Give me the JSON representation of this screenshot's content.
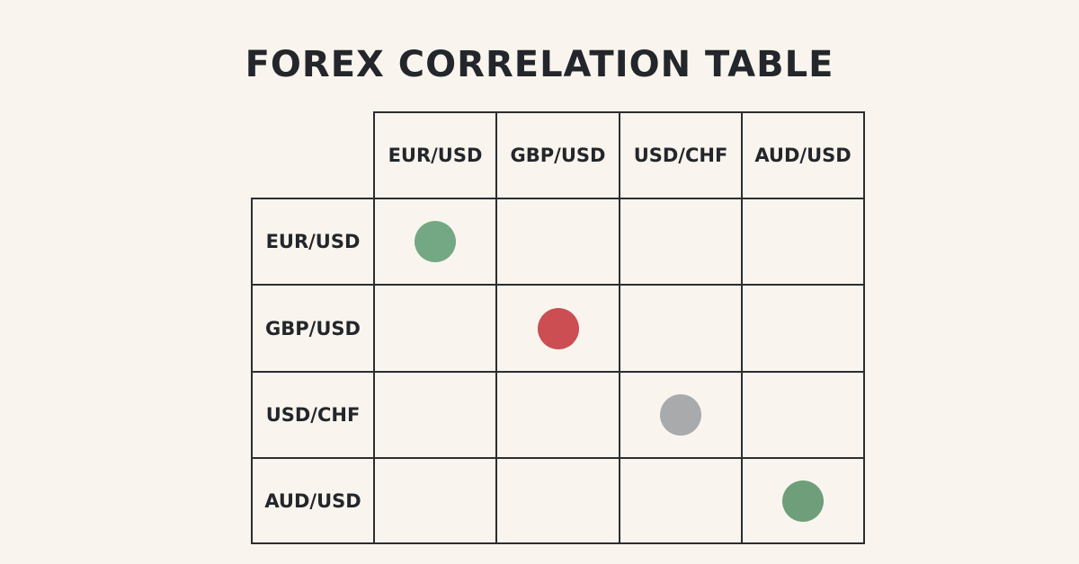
{
  "title": "FOREX CORRELATION TABLE",
  "columns": [
    "EUR/USD",
    "GBP/USD",
    "USD/CHF",
    "AUD/USD"
  ],
  "rows": [
    "EUR/USD",
    "GBP/USD",
    "USD/CHF",
    "AUD/USD"
  ],
  "markers": [
    {
      "row": 0,
      "col": 0,
      "color": "#74a884"
    },
    {
      "row": 1,
      "col": 1,
      "color": "#cc4d52"
    },
    {
      "row": 2,
      "col": 2,
      "color": "#a8aaab"
    },
    {
      "row": 3,
      "col": 3,
      "color": "#6e9f7a"
    }
  ]
}
